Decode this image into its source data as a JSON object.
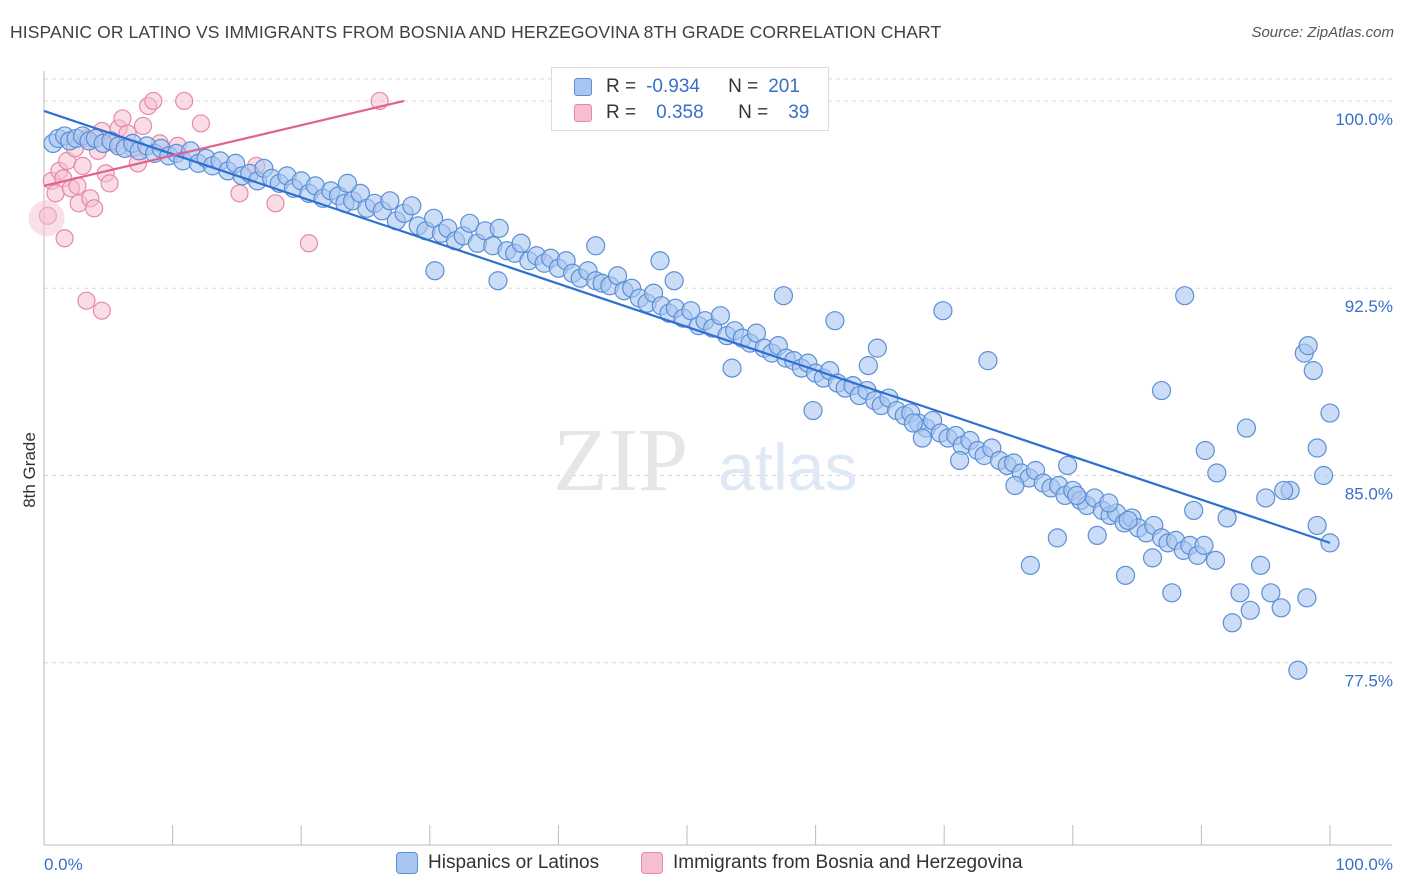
{
  "title": "HISPANIC OR LATINO VS IMMIGRANTS FROM BOSNIA AND HERZEGOVINA 8TH GRADE CORRELATION CHART",
  "source": "Source: ZipAtlas.com",
  "watermark": {
    "zip": "ZIP",
    "atlas": "atlas"
  },
  "colors": {
    "blue_fill": "#a9c6f0",
    "blue_stroke": "#5b8fd6",
    "blue_line": "#2f6fd1",
    "pink_fill": "#f6bfd0",
    "pink_stroke": "#e58aa8",
    "pink_line": "#e0628e",
    "grid": "#d8d8d8",
    "axis_label": "#3a6fc8"
  },
  "legend_top": {
    "rows": [
      {
        "r_key": "R =",
        "r_val": "-0.934",
        "n_key": "N =",
        "n_val": "201"
      },
      {
        "r_key": "R =",
        "r_val": "0.358",
        "n_key": "N =",
        "n_val": "39"
      }
    ]
  },
  "legend_bottom": {
    "items": [
      "Hispanics or Latinos",
      "Immigrants from Bosnia and Herzegovina"
    ]
  },
  "chart_data": {
    "type": "scatter",
    "title": "HISPANIC OR LATINO VS IMMIGRANTS FROM BOSNIA AND HERZEGOVINA 8TH GRADE CORRELATION CHART",
    "xlabel": "",
    "ylabel": "8th Grade",
    "xlim": [
      0,
      100
    ],
    "ylim": [
      70.2,
      101.2
    ],
    "x_tick_labels": [
      "0.0%",
      "100.0%"
    ],
    "y_ticks": [
      77.5,
      85.0,
      92.5,
      100.0
    ],
    "y_tick_labels": [
      "77.5%",
      "85.0%",
      "92.5%",
      "100.0%"
    ],
    "grid": true,
    "legend_position": "top-center",
    "series": [
      {
        "name": "Hispanics or Latinos",
        "r": -0.934,
        "n": 201,
        "trend": {
          "x": [
            0,
            100
          ],
          "y": [
            99.6,
            82.3
          ]
        },
        "points": [
          [
            0.7,
            98.3
          ],
          [
            1.1,
            98.5
          ],
          [
            1.6,
            98.6
          ],
          [
            2.0,
            98.4
          ],
          [
            2.5,
            98.5
          ],
          [
            3.0,
            98.6
          ],
          [
            3.5,
            98.4
          ],
          [
            4.0,
            98.5
          ],
          [
            4.6,
            98.3
          ],
          [
            5.2,
            98.4
          ],
          [
            5.8,
            98.2
          ],
          [
            6.3,
            98.1
          ],
          [
            6.9,
            98.3
          ],
          [
            7.4,
            98.0
          ],
          [
            8.0,
            98.2
          ],
          [
            8.6,
            97.9
          ],
          [
            9.1,
            98.1
          ],
          [
            9.7,
            97.8
          ],
          [
            10.3,
            97.9
          ],
          [
            10.8,
            97.6
          ],
          [
            11.4,
            98.0
          ],
          [
            12.0,
            97.5
          ],
          [
            12.6,
            97.7
          ],
          [
            13.1,
            97.4
          ],
          [
            13.7,
            97.6
          ],
          [
            14.3,
            97.2
          ],
          [
            14.9,
            97.5
          ],
          [
            15.4,
            97.0
          ],
          [
            16.0,
            97.1
          ],
          [
            16.6,
            96.8
          ],
          [
            17.1,
            97.3
          ],
          [
            17.7,
            96.9
          ],
          [
            18.3,
            96.7
          ],
          [
            18.9,
            97.0
          ],
          [
            19.4,
            96.5
          ],
          [
            20.0,
            96.8
          ],
          [
            20.6,
            96.3
          ],
          [
            21.1,
            96.6
          ],
          [
            21.7,
            96.1
          ],
          [
            22.3,
            96.4
          ],
          [
            22.9,
            96.2
          ],
          [
            23.4,
            95.9
          ],
          [
            24.0,
            96.0
          ],
          [
            24.6,
            96.3
          ],
          [
            25.1,
            95.7
          ],
          [
            25.7,
            95.9
          ],
          [
            26.3,
            95.6
          ],
          [
            26.9,
            96.0
          ],
          [
            27.4,
            95.2
          ],
          [
            28.0,
            95.5
          ],
          [
            28.6,
            95.8
          ],
          [
            29.1,
            95.0
          ],
          [
            29.7,
            94.8
          ],
          [
            30.3,
            95.3
          ],
          [
            30.9,
            94.7
          ],
          [
            31.4,
            94.9
          ],
          [
            32.0,
            94.4
          ],
          [
            32.6,
            94.6
          ],
          [
            33.1,
            95.1
          ],
          [
            33.7,
            94.3
          ],
          [
            34.3,
            94.8
          ],
          [
            34.9,
            94.2
          ],
          [
            35.4,
            94.9
          ],
          [
            36.0,
            94.0
          ],
          [
            36.6,
            93.9
          ],
          [
            37.1,
            94.3
          ],
          [
            37.7,
            93.6
          ],
          [
            38.3,
            93.8
          ],
          [
            38.9,
            93.5
          ],
          [
            39.4,
            93.7
          ],
          [
            40.0,
            93.3
          ],
          [
            40.6,
            93.6
          ],
          [
            41.1,
            93.1
          ],
          [
            41.7,
            92.9
          ],
          [
            42.3,
            93.2
          ],
          [
            42.9,
            92.8
          ],
          [
            43.4,
            92.7
          ],
          [
            44.0,
            92.6
          ],
          [
            44.6,
            93.0
          ],
          [
            45.1,
            92.4
          ],
          [
            45.7,
            92.5
          ],
          [
            46.3,
            92.1
          ],
          [
            46.9,
            91.9
          ],
          [
            47.4,
            92.3
          ],
          [
            48.0,
            91.8
          ],
          [
            48.6,
            91.5
          ],
          [
            49.1,
            91.7
          ],
          [
            49.7,
            91.3
          ],
          [
            50.3,
            91.6
          ],
          [
            50.9,
            91.0
          ],
          [
            51.4,
            91.2
          ],
          [
            52.0,
            90.9
          ],
          [
            52.6,
            91.4
          ],
          [
            53.1,
            90.6
          ],
          [
            53.7,
            90.8
          ],
          [
            54.3,
            90.5
          ],
          [
            54.9,
            90.3
          ],
          [
            55.4,
            90.7
          ],
          [
            56.0,
            90.1
          ],
          [
            56.6,
            89.9
          ],
          [
            57.1,
            90.2
          ],
          [
            57.7,
            89.7
          ],
          [
            58.3,
            89.6
          ],
          [
            58.9,
            89.3
          ],
          [
            59.4,
            89.5
          ],
          [
            60.0,
            89.1
          ],
          [
            60.6,
            88.9
          ],
          [
            61.1,
            89.2
          ],
          [
            61.7,
            88.7
          ],
          [
            62.3,
            88.5
          ],
          [
            62.9,
            88.6
          ],
          [
            63.4,
            88.2
          ],
          [
            64.0,
            88.4
          ],
          [
            64.6,
            88.0
          ],
          [
            65.1,
            87.8
          ],
          [
            65.7,
            88.1
          ],
          [
            66.3,
            87.6
          ],
          [
            66.9,
            87.4
          ],
          [
            67.4,
            87.5
          ],
          [
            68.0,
            87.1
          ],
          [
            68.6,
            86.9
          ],
          [
            69.1,
            87.2
          ],
          [
            69.7,
            86.7
          ],
          [
            70.3,
            86.5
          ],
          [
            70.9,
            86.6
          ],
          [
            71.4,
            86.2
          ],
          [
            72.0,
            86.4
          ],
          [
            72.6,
            86.0
          ],
          [
            73.1,
            85.8
          ],
          [
            73.7,
            86.1
          ],
          [
            74.3,
            85.6
          ],
          [
            74.9,
            85.4
          ],
          [
            75.4,
            85.5
          ],
          [
            76.0,
            85.1
          ],
          [
            76.6,
            84.9
          ],
          [
            77.1,
            85.2
          ],
          [
            77.7,
            84.7
          ],
          [
            78.3,
            84.5
          ],
          [
            78.9,
            84.6
          ],
          [
            79.4,
            84.2
          ],
          [
            80.0,
            84.4
          ],
          [
            80.6,
            84.0
          ],
          [
            81.1,
            83.8
          ],
          [
            81.7,
            84.1
          ],
          [
            82.3,
            83.6
          ],
          [
            82.9,
            83.4
          ],
          [
            83.4,
            83.5
          ],
          [
            84.0,
            83.1
          ],
          [
            84.6,
            83.3
          ],
          [
            85.1,
            82.9
          ],
          [
            85.7,
            82.7
          ],
          [
            86.3,
            83.0
          ],
          [
            86.9,
            82.5
          ],
          [
            87.4,
            82.3
          ],
          [
            88.0,
            82.4
          ],
          [
            88.6,
            82.0
          ],
          [
            89.1,
            82.2
          ],
          [
            89.7,
            81.8
          ],
          [
            23.6,
            96.7
          ],
          [
            30.4,
            93.2
          ],
          [
            35.3,
            92.8
          ],
          [
            42.9,
            94.2
          ],
          [
            47.9,
            93.6
          ],
          [
            49.0,
            92.8
          ],
          [
            53.5,
            89.3
          ],
          [
            57.5,
            92.2
          ],
          [
            59.8,
            87.6
          ],
          [
            61.5,
            91.2
          ],
          [
            64.8,
            90.1
          ],
          [
            64.1,
            89.4
          ],
          [
            68.3,
            86.5
          ],
          [
            67.6,
            87.1
          ],
          [
            69.9,
            91.6
          ],
          [
            71.2,
            85.6
          ],
          [
            73.4,
            89.6
          ],
          [
            75.5,
            84.6
          ],
          [
            76.7,
            81.4
          ],
          [
            78.8,
            82.5
          ],
          [
            79.6,
            85.4
          ],
          [
            80.3,
            84.2
          ],
          [
            82.8,
            83.9
          ],
          [
            84.3,
            83.2
          ],
          [
            86.2,
            81.7
          ],
          [
            87.7,
            80.3
          ],
          [
            89.4,
            83.6
          ],
          [
            90.2,
            82.2
          ],
          [
            91.1,
            81.6
          ],
          [
            92.4,
            79.1
          ],
          [
            93.0,
            80.3
          ],
          [
            93.8,
            79.6
          ],
          [
            94.6,
            81.4
          ],
          [
            95.4,
            80.3
          ],
          [
            96.2,
            79.7
          ],
          [
            96.9,
            84.4
          ],
          [
            98.2,
            80.1
          ],
          [
            99.0,
            83.0
          ],
          [
            99.5,
            85.0
          ],
          [
            100.0,
            82.3
          ],
          [
            81.9,
            82.6
          ],
          [
            84.1,
            81.0
          ],
          [
            86.9,
            88.4
          ],
          [
            88.7,
            92.2
          ],
          [
            90.3,
            86.0
          ],
          [
            91.2,
            85.1
          ],
          [
            92.0,
            83.3
          ],
          [
            93.5,
            86.9
          ],
          [
            95.0,
            84.1
          ],
          [
            96.4,
            84.4
          ],
          [
            97.5,
            77.2
          ],
          [
            98.0,
            89.9
          ],
          [
            99.0,
            86.1
          ],
          [
            100.0,
            87.5
          ],
          [
            98.7,
            89.2
          ],
          [
            98.3,
            90.2
          ]
        ]
      },
      {
        "name": "Immigrants from Bosnia and Herzegovina",
        "r": 0.358,
        "n": 39,
        "trend": {
          "x": [
            0,
            28
          ],
          "y": [
            96.6,
            100.0
          ]
        },
        "points": [
          [
            0.3,
            95.4
          ],
          [
            0.6,
            96.8
          ],
          [
            0.9,
            96.3
          ],
          [
            1.2,
            97.2
          ],
          [
            1.5,
            96.9
          ],
          [
            1.8,
            97.6
          ],
          [
            2.1,
            96.5
          ],
          [
            2.4,
            98.1
          ],
          [
            2.7,
            95.9
          ],
          [
            3.0,
            97.4
          ],
          [
            3.3,
            98.5
          ],
          [
            3.6,
            96.1
          ],
          [
            3.9,
            95.7
          ],
          [
            4.2,
            98.0
          ],
          [
            4.5,
            98.8
          ],
          [
            4.8,
            97.1
          ],
          [
            5.1,
            96.7
          ],
          [
            5.5,
            98.3
          ],
          [
            5.8,
            98.9
          ],
          [
            6.1,
            99.3
          ],
          [
            6.5,
            98.7
          ],
          [
            6.9,
            98.1
          ],
          [
            7.3,
            97.5
          ],
          [
            7.7,
            99.0
          ],
          [
            8.1,
            99.8
          ],
          [
            8.5,
            100.0
          ],
          [
            9.0,
            98.3
          ],
          [
            10.4,
            98.2
          ],
          [
            10.9,
            100.0
          ],
          [
            12.2,
            99.1
          ],
          [
            15.2,
            96.3
          ],
          [
            16.5,
            97.4
          ],
          [
            18.0,
            95.9
          ],
          [
            20.6,
            94.3
          ],
          [
            3.3,
            92.0
          ],
          [
            4.5,
            91.6
          ],
          [
            1.6,
            94.5
          ],
          [
            2.6,
            96.6
          ],
          [
            26.1,
            100.0
          ]
        ]
      }
    ]
  }
}
